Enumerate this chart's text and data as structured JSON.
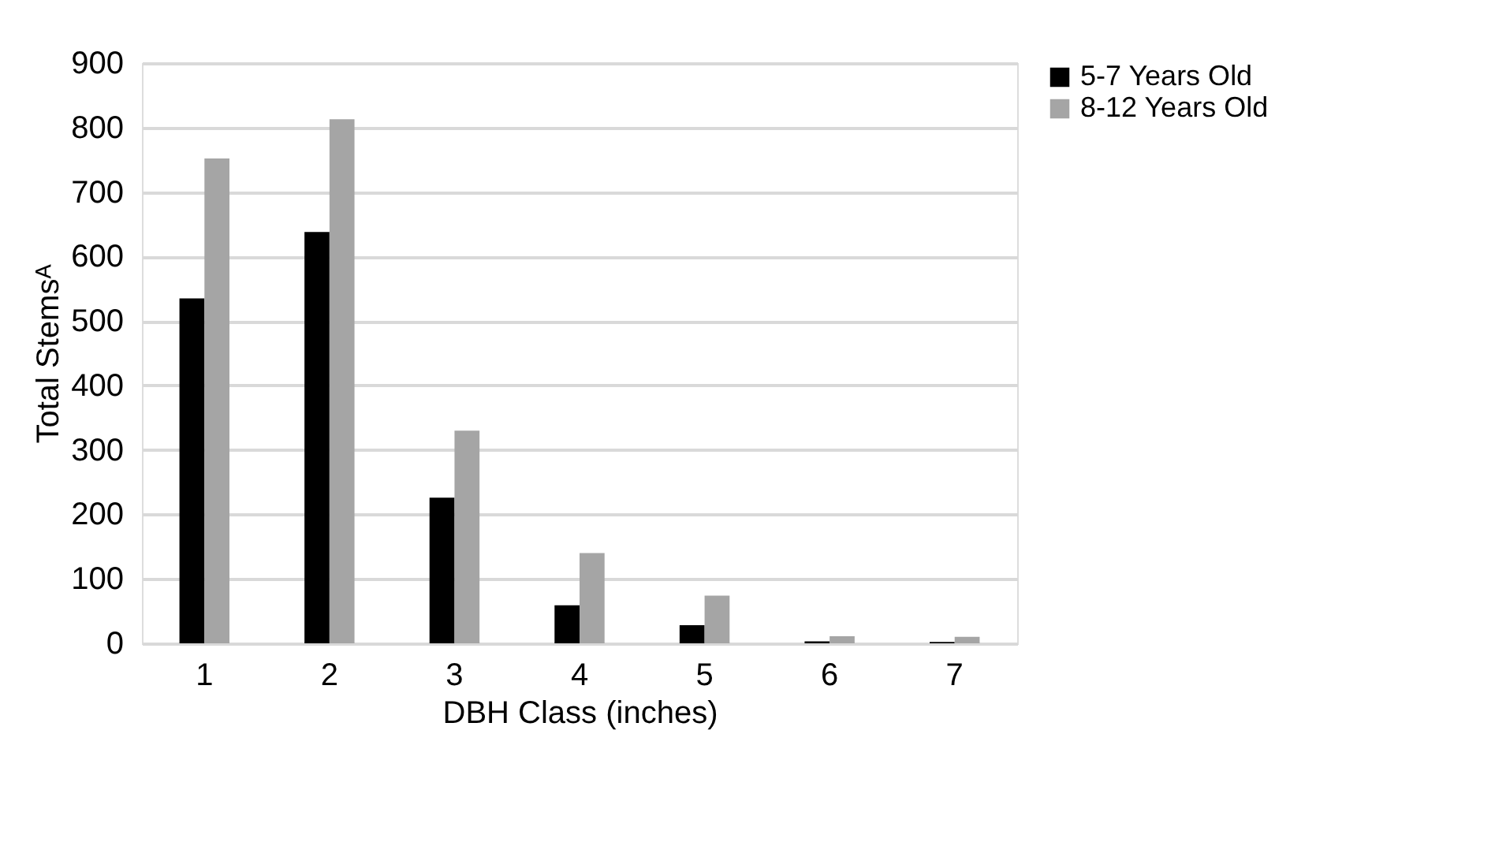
{
  "chart_data": {
    "type": "bar",
    "xlabel": "DBH Class (inches)",
    "ylabel": "Total Stemsᴬ",
    "categories": [
      "1",
      "2",
      "3",
      "4",
      "5",
      "6",
      "7"
    ],
    "series": [
      {
        "name": "5-7 Years Old",
        "color": "#000000",
        "values": [
          535,
          638,
          226,
          59,
          28,
          3,
          2
        ]
      },
      {
        "name": "8-12 Years Old",
        "color": "#a5a5a5",
        "values": [
          752,
          813,
          330,
          140,
          74,
          11,
          10
        ]
      }
    ],
    "ylim": [
      0,
      900
    ],
    "yticks": [
      0,
      100,
      200,
      300,
      400,
      500,
      600,
      700,
      800,
      900
    ],
    "grid": "y",
    "legend": "right"
  }
}
